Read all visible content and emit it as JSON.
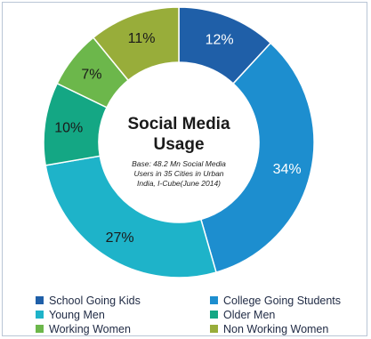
{
  "chart_data": {
    "type": "pie",
    "style": "donut",
    "title_line1": "Social Media",
    "title_line2": "Usage",
    "note_lines": [
      "Base: 48.2 Mn Social Media",
      "Users in 35 Cities  in Urban",
      "India, I-Cube(June 2014)"
    ],
    "slices": [
      {
        "name": "School Going Kids",
        "value": 12,
        "label": "12%",
        "color": "#1f5fa8"
      },
      {
        "name": "College Going Students",
        "value": 34,
        "label": "34%",
        "color": "#1d8ecf"
      },
      {
        "name": "Young Men",
        "value": 27,
        "label": "27%",
        "color": "#1eb3c9"
      },
      {
        "name": "Older Men",
        "value": 10,
        "label": "10%",
        "color": "#14a784"
      },
      {
        "name": "Working Women",
        "value": 7,
        "label": "7%",
        "color": "#6cb74b"
      },
      {
        "name": "Non Working Women",
        "value": 11,
        "label": "11%",
        "color": "#98ad3a"
      }
    ],
    "legend_placement": "bottom"
  }
}
